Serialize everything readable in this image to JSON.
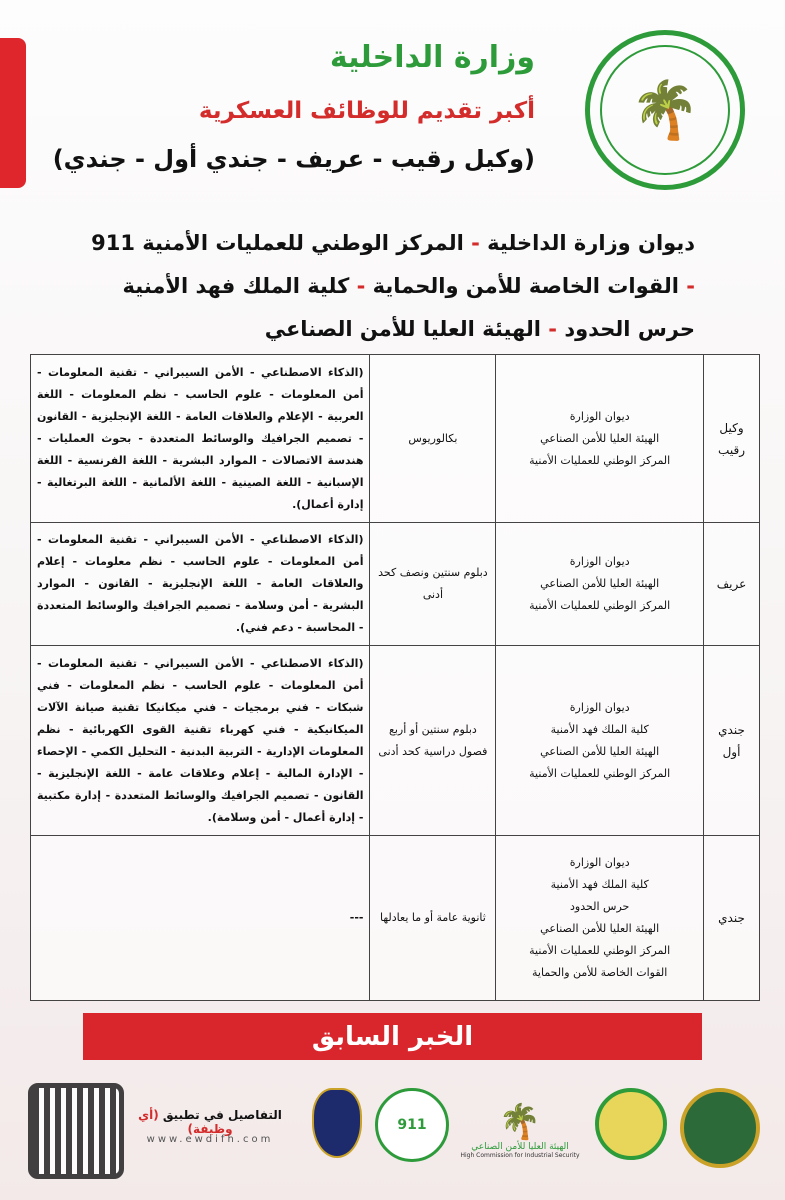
{
  "header": {
    "title": "وزارة الداخلية",
    "subtitle": "أكبر تقديم للوظائف العسكرية",
    "ranks": "(وكيل رقيب - عريف - جندي أول - جندي)"
  },
  "entities": {
    "line1a": "ديوان وزارة الداخلية",
    "line1b": "المركز الوطني للعمليات الأمنية 911",
    "line2a": "القوات الخاصة للأمن والحماية",
    "line2b": "كلية الملك فهد الأمنية",
    "line3a": "حرس الحدود",
    "line3b": "الهيئة العليا للأمن الصناعي",
    "sep": " - "
  },
  "table": {
    "rows": [
      {
        "rank": "وكيل رقيب",
        "entities": [
          "ديوان الوزارة",
          "الهيئة العليا للأمن الصناعي",
          "المركز الوطني للعمليات الأمنية"
        ],
        "qualification": "بكالوريوس",
        "specializations": "(الذكاء الاصطناعي - الأمن السيبراني - تقنية المعلومات - أمن المعلومات - علوم الحاسب - نظم المعلومات - اللغة العربية - الإعلام والعلاقات العامة - اللغة الإنجليزية - القانون - تصميم الجرافيك والوسائط المتعددة - بحوث العمليات - هندسة الاتصالات - الموارد البشرية - اللغة الفرنسية - اللغة الإسبانية - اللغة الصينية - اللغة الألمانية - اللغة البرتغالية - إدارة أعمال)."
      },
      {
        "rank": "عريف",
        "entities": [
          "ديوان الوزارة",
          "الهيئة العليا للأمن الصناعي",
          "المركز الوطني للعمليات الأمنية"
        ],
        "qualification": "دبلوم سنتين ونصف كحد أدنى",
        "specializations": "(الذكاء الاصطناعي - الأمن السيبراني - تقنية المعلومات - أمن المعلومات - علوم الحاسب - نظم معلومات - إعلام والعلاقات العامة - اللغة الإنجليزية - القانون - الموارد البشرية - أمن وسلامة - تصميم الجرافيك والوسائط المتعددة - المحاسبة - دعم فني)."
      },
      {
        "rank": "جندي أول",
        "entities": [
          "ديوان الوزارة",
          "كلية الملك فهد الأمنية",
          "الهيئة العليا للأمن الصناعي",
          "المركز الوطني للعمليات الأمنية"
        ],
        "qualification": "دبلوم سنتين أو أربع فصول دراسية كحد أدنى",
        "specializations": "(الذكاء الاصطناعي - الأمن السيبراني - تقنية المعلومات - أمن المعلومات - علوم الحاسب - نظم المعلومات - فني شبكات - فني برمجيات - فني ميكانيكا تقنية صيانة الآلات الميكانيكية - فني كهرباء تقنية القوى الكهربائية - نظم المعلومات الإدارية - التربية البدنية - التحليل الكمي - الإحصاء - الإدارة المالية - إعلام وعلاقات عامة - اللغة الإنجليزية - القانون - تصميم الجرافيك والوسائط المتعددة - إدارة مكتبية - إدارة أعمال - أمن وسلامة)."
      },
      {
        "rank": "جندي",
        "entities": [
          "ديوان الوزارة",
          "كلية الملك فهد الأمنية",
          "حرس الحدود",
          "الهيئة العليا للأمن الصناعي",
          "المركز الوطني للعمليات الأمنية",
          "القوات الخاصة للأمن والحماية"
        ],
        "qualification": "ثانوية عامة أو ما يعادلها",
        "specializations": "---"
      }
    ]
  },
  "previous_button": "الخبر السابق",
  "footer": {
    "details_prefix": "التفاصيل في تطبيق ",
    "app_name": "(أي وظيفة)",
    "url": "www.ewdifh.com",
    "logo_labels": [
      "الهيئة العليا للأمن الصناعي",
      "High Commission for Industrial Security",
      "911"
    ]
  },
  "colors": {
    "green": "#2e9b3a",
    "red": "#d42b2b"
  }
}
